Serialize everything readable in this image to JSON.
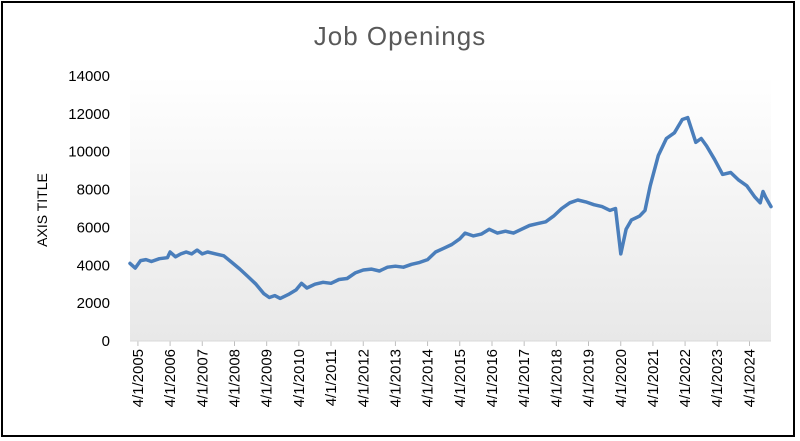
{
  "chart_data": {
    "type": "line",
    "title": "Job Openings",
    "ylabel": "AXIS TITLE",
    "xlabel": "",
    "ylim": [
      0,
      14000
    ],
    "yticks": [
      0,
      2000,
      4000,
      6000,
      8000,
      10000,
      12000,
      14000
    ],
    "xtick_labels": [
      "4/1/2005",
      "4/1/2006",
      "4/1/2007",
      "4/1/2008",
      "4/1/2009",
      "4/1/2010",
      "4/1/2011",
      "4/1/2012",
      "4/1/2013",
      "4/1/2014",
      "4/1/2015",
      "4/1/2016",
      "4/1/2017",
      "4/1/2018",
      "4/1/2019",
      "4/1/2020",
      "4/1/2021",
      "4/1/2022",
      "4/1/2023",
      "4/1/2024"
    ],
    "x_range": [
      "2005-01-01",
      "2024-12-01"
    ],
    "grid": false,
    "legend": "none",
    "background": "gradient light gray",
    "series": [
      {
        "name": "",
        "color": "#4a7ebb",
        "points": [
          [
            "2005-01-01",
            4100
          ],
          [
            "2005-03-01",
            3850
          ],
          [
            "2005-05-01",
            4250
          ],
          [
            "2005-07-01",
            4300
          ],
          [
            "2005-09-01",
            4200
          ],
          [
            "2005-12-01",
            4350
          ],
          [
            "2006-03-01",
            4400
          ],
          [
            "2006-04-01",
            4700
          ],
          [
            "2006-06-01",
            4450
          ],
          [
            "2006-08-01",
            4600
          ],
          [
            "2006-10-01",
            4700
          ],
          [
            "2006-12-01",
            4600
          ],
          [
            "2007-02-01",
            4800
          ],
          [
            "2007-04-01",
            4600
          ],
          [
            "2007-06-01",
            4700
          ],
          [
            "2007-09-01",
            4600
          ],
          [
            "2007-12-01",
            4500
          ],
          [
            "2008-03-01",
            4150
          ],
          [
            "2008-06-01",
            3800
          ],
          [
            "2008-09-01",
            3400
          ],
          [
            "2008-12-01",
            3000
          ],
          [
            "2009-03-01",
            2500
          ],
          [
            "2009-05-01",
            2300
          ],
          [
            "2009-07-01",
            2400
          ],
          [
            "2009-09-01",
            2250
          ],
          [
            "2009-12-01",
            2450
          ],
          [
            "2010-03-01",
            2700
          ],
          [
            "2010-05-01",
            3050
          ],
          [
            "2010-07-01",
            2800
          ],
          [
            "2010-10-01",
            3000
          ],
          [
            "2011-01-01",
            3100
          ],
          [
            "2011-04-01",
            3050
          ],
          [
            "2011-07-01",
            3250
          ],
          [
            "2011-10-01",
            3300
          ],
          [
            "2012-01-01",
            3600
          ],
          [
            "2012-04-01",
            3750
          ],
          [
            "2012-07-01",
            3800
          ],
          [
            "2012-10-01",
            3700
          ],
          [
            "2013-01-01",
            3900
          ],
          [
            "2013-04-01",
            3950
          ],
          [
            "2013-07-01",
            3900
          ],
          [
            "2013-10-01",
            4050
          ],
          [
            "2014-01-01",
            4150
          ],
          [
            "2014-04-01",
            4300
          ],
          [
            "2014-07-01",
            4700
          ],
          [
            "2014-10-01",
            4900
          ],
          [
            "2015-01-01",
            5100
          ],
          [
            "2015-04-01",
            5400
          ],
          [
            "2015-06-01",
            5700
          ],
          [
            "2015-09-01",
            5550
          ],
          [
            "2015-12-01",
            5650
          ],
          [
            "2016-03-01",
            5900
          ],
          [
            "2016-06-01",
            5700
          ],
          [
            "2016-09-01",
            5800
          ],
          [
            "2016-12-01",
            5700
          ],
          [
            "2017-03-01",
            5900
          ],
          [
            "2017-06-01",
            6100
          ],
          [
            "2017-09-01",
            6200
          ],
          [
            "2017-12-01",
            6300
          ],
          [
            "2018-03-01",
            6600
          ],
          [
            "2018-06-01",
            7000
          ],
          [
            "2018-09-01",
            7300
          ],
          [
            "2018-12-01",
            7450
          ],
          [
            "2019-03-01",
            7350
          ],
          [
            "2019-06-01",
            7200
          ],
          [
            "2019-09-01",
            7100
          ],
          [
            "2019-12-01",
            6900
          ],
          [
            "2020-02-01",
            7000
          ],
          [
            "2020-04-01",
            4600
          ],
          [
            "2020-06-01",
            5900
          ],
          [
            "2020-08-01",
            6400
          ],
          [
            "2020-11-01",
            6600
          ],
          [
            "2021-01-01",
            6900
          ],
          [
            "2021-03-01",
            8200
          ],
          [
            "2021-06-01",
            9800
          ],
          [
            "2021-09-01",
            10700
          ],
          [
            "2021-12-01",
            11000
          ],
          [
            "2022-03-01",
            11700
          ],
          [
            "2022-05-01",
            11800
          ],
          [
            "2022-08-01",
            10500
          ],
          [
            "2022-10-01",
            10700
          ],
          [
            "2022-12-01",
            10300
          ],
          [
            "2023-03-01",
            9600
          ],
          [
            "2023-06-01",
            8800
          ],
          [
            "2023-09-01",
            8900
          ],
          [
            "2023-12-01",
            8500
          ],
          [
            "2024-03-01",
            8200
          ],
          [
            "2024-06-01",
            7600
          ],
          [
            "2024-08-01",
            7300
          ],
          [
            "2024-09-01",
            7900
          ],
          [
            "2024-10-01",
            7600
          ],
          [
            "2024-12-01",
            7100
          ]
        ]
      }
    ]
  }
}
